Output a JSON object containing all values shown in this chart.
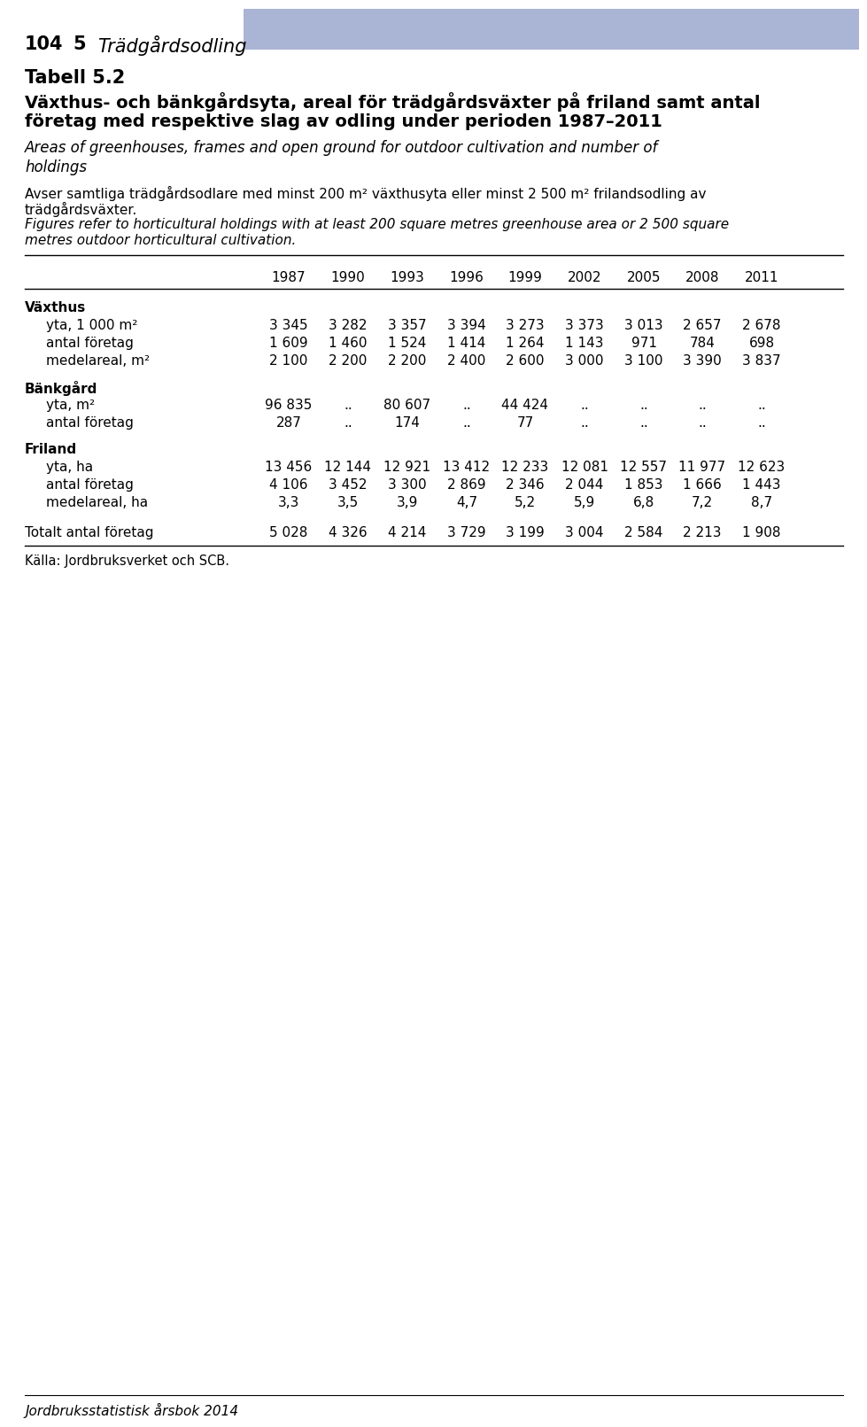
{
  "page_number": "104",
  "chapter_number": "5",
  "chapter_title": "Trädgårdsodling",
  "header_bar_color": "#aab4d4",
  "table_number": "Tabell 5.2",
  "title_sv_line1": "Växthus- och bänkgårdsyta, areal för trädgårdsväxter på friland samt antal",
  "title_sv_line2": "företag med respektive slag av odling under perioden 1987–2011",
  "subtitle_en_line1": "Areas of greenhouses, frames and open ground for outdoor cultivation and number of",
  "subtitle_en_line2": "holdings",
  "note_sv_line1": "Avser samtliga trädgårdsodlare med minst 200 m² växthusyta eller minst 2 500 m² frilandsodling av",
  "note_sv_line2": "trädgårdsväxter.",
  "note_en_line1": "Figures refer to horticultural holdings with at least 200 square metres greenhouse area or 2 500 square",
  "note_en_line2": "metres outdoor horticultural cultivation.",
  "years": [
    "1987",
    "1990",
    "1993",
    "1996",
    "1999",
    "2002",
    "2005",
    "2008",
    "2011"
  ],
  "sections": [
    {
      "header": "Växthus",
      "rows": [
        {
          "label": "yta, 1 000 m²",
          "values": [
            "3 345",
            "3 282",
            "3 357",
            "3 394",
            "3 273",
            "3 373",
            "3 013",
            "2 657",
            "2 678"
          ]
        },
        {
          "label": "antal företag",
          "values": [
            "1 609",
            "1 460",
            "1 524",
            "1 414",
            "1 264",
            "1 143",
            "971",
            "784",
            "698"
          ]
        },
        {
          "label": "medelareal, m²",
          "values": [
            "2 100",
            "2 200",
            "2 200",
            "2 400",
            "2 600",
            "3 000",
            "3 100",
            "3 390",
            "3 837"
          ]
        }
      ]
    },
    {
      "header": "Bänkgård",
      "rows": [
        {
          "label": "yta, m²",
          "values": [
            "96 835",
            "..",
            "80 607",
            "..",
            "44 424",
            "..",
            "..",
            "..",
            ".."
          ]
        },
        {
          "label": "antal företag",
          "values": [
            "287",
            "..",
            "174",
            "..",
            "77",
            "..",
            "..",
            "..",
            ".."
          ]
        }
      ]
    },
    {
      "header": "Friland",
      "rows": [
        {
          "label": "yta, ha",
          "values": [
            "13 456",
            "12 144",
            "12 921",
            "13 412",
            "12 233",
            "12 081",
            "12 557",
            "11 977",
            "12 623"
          ]
        },
        {
          "label": "antal företag",
          "values": [
            "4 106",
            "3 452",
            "3 300",
            "2 869",
            "2 346",
            "2 044",
            "1 853",
            "1 666",
            "1 443"
          ]
        },
        {
          "label": "medelareal, ha",
          "values": [
            "3,3",
            "3,5",
            "3,9",
            "4,7",
            "5,2",
            "5,9",
            "6,8",
            "7,2",
            "8,7"
          ]
        }
      ]
    }
  ],
  "total_row": {
    "label": "Totalt antal företag",
    "values": [
      "5 028",
      "4 326",
      "4 214",
      "3 729",
      "3 199",
      "3 004",
      "2 584",
      "2 213",
      "1 908"
    ]
  },
  "source": "Källa: Jordbruksverket och SCB.",
  "footer": "Jordbruksstatistisk årsbok 2014",
  "background_color": "#ffffff"
}
